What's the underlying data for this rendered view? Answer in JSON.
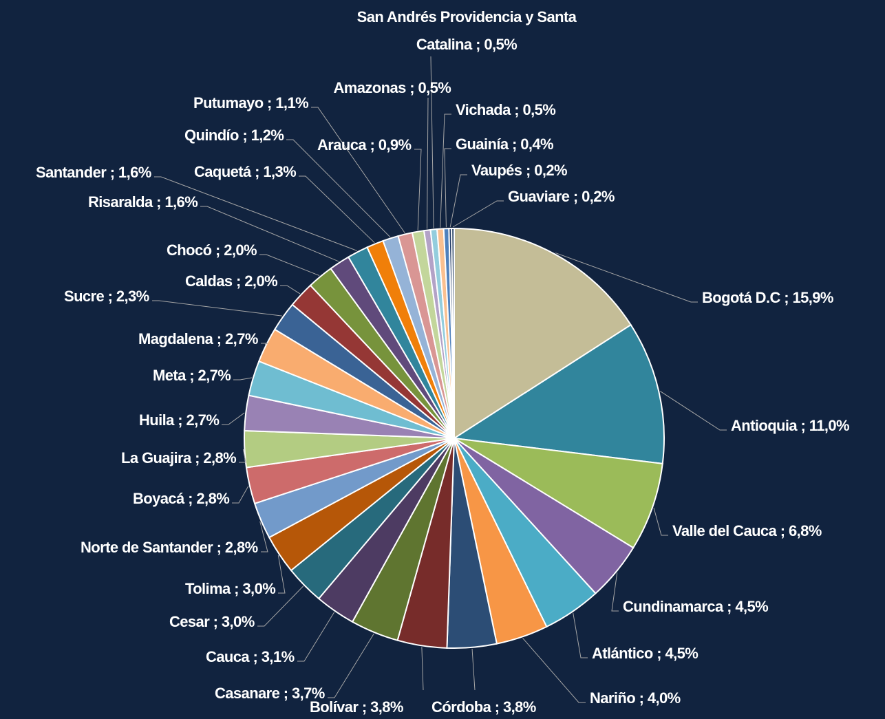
{
  "chart_data": {
    "type": "pie",
    "values": [
      15.9,
      11.0,
      6.8,
      4.5,
      4.5,
      4.0,
      3.8,
      3.8,
      3.7,
      3.1,
      3.0,
      3.0,
      2.8,
      2.8,
      2.8,
      2.7,
      2.7,
      2.7,
      2.3,
      2.0,
      2.0,
      1.6,
      1.6,
      1.3,
      1.2,
      1.1,
      0.9,
      0.5,
      0.5,
      0.5,
      0.4,
      0.2,
      0.2
    ],
    "value_labels": [
      "Bogotá D.C ; 15,9%",
      "Antioquia ; 11,0%",
      "Valle del Cauca ; 6,8%",
      "Cundinamarca ; 4,5%",
      "Atlántico ; 4,5%",
      "Nariño ; 4,0%",
      "Córdoba ; 3,8%",
      "Bolívar ; 3,8%",
      "Casanare ; 3,7%",
      "Cauca ; 3,1%",
      "Cesar ; 3,0%",
      "Tolima ; 3,0%",
      "Norte de Santander ; 2,8%",
      "Boyacá ; 2,8%",
      "La Guajira ; 2,8%",
      "Huila ; 2,7%",
      "Meta ; 2,7%",
      "Magdalena ; 2,7%",
      "Sucre ; 2,3%",
      "Caldas ; 2,0%",
      "Chocó ; 2,0%",
      "Risaralda ; 1,6%",
      "Santander ; 1,6%",
      "Caquetá ; 1,3%",
      "Quindío ; 1,2%",
      "Putumayo ; 1,1%",
      "Arauca ; 0,9%",
      "Amazonas ; 0,5%",
      "San Andrés Providencia y Santa Catalina ; 0,5%",
      "Vichada ; 0,5%",
      "Guainía ; 0,4%",
      "Vaupés ; 0,2%",
      "Guaviare ; 0,2%"
    ],
    "colors": [
      "#c4bd97",
      "#31859c",
      "#9bbb59",
      "#8064a2",
      "#4bacc6",
      "#f79646",
      "#2c4d75",
      "#772c2a",
      "#5f7530",
      "#4d3b62",
      "#276a7c",
      "#b65708",
      "#729aca",
      "#cd6b6b",
      "#b3cc82",
      "#9982b4",
      "#6fbdd1",
      "#f9ac6f",
      "#3a6395",
      "#953735",
      "#77933c",
      "#604a7b",
      "#31859c",
      "#f07f09",
      "#95b3d7",
      "#d99694",
      "#c3d69b",
      "#b3a2c7",
      "#93cddd",
      "#fac090",
      "#4f81bd",
      "#1f3864",
      "#254061"
    ]
  }
}
